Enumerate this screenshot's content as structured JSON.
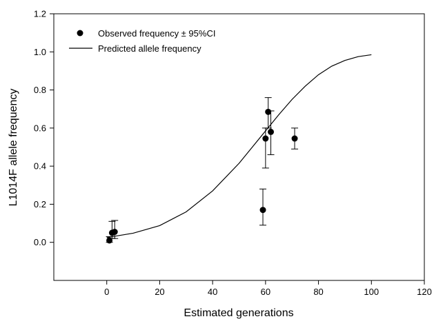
{
  "chart_data": {
    "type": "scatter",
    "title": "",
    "xlabel": "Estimated generations",
    "ylabel": "L1014F allele frequency",
    "xlim": [
      -20,
      120
    ],
    "ylim": [
      -0.2,
      1.2
    ],
    "x_ticks": [
      0,
      20,
      40,
      60,
      80,
      100,
      120
    ],
    "y_ticks": [
      0.0,
      0.2,
      0.4,
      0.6,
      0.8,
      1.0,
      1.2
    ],
    "x_tick_labels": [
      "0",
      "20",
      "40",
      "60",
      "80",
      "100",
      "120"
    ],
    "y_tick_labels": [
      "0.0",
      "0.2",
      "0.4",
      "0.6",
      "0.8",
      "1.0",
      "1.2"
    ],
    "grid": false,
    "legend_position": "top-left",
    "legend": {
      "observed": "Observed frequency ± 95%CI",
      "predicted": "Predicted allele frequency"
    },
    "series": [
      {
        "name": "Observed frequency ± 95%CI",
        "type": "scatter",
        "points": [
          {
            "x": 1,
            "y": 0.01,
            "ci_low": 0.0,
            "ci_high": 0.03
          },
          {
            "x": 2,
            "y": 0.05,
            "ci_low": 0.02,
            "ci_high": 0.11
          },
          {
            "x": 3,
            "y": 0.055,
            "ci_low": 0.02,
            "ci_high": 0.115
          },
          {
            "x": 59,
            "y": 0.17,
            "ci_low": 0.09,
            "ci_high": 0.28
          },
          {
            "x": 60,
            "y": 0.545,
            "ci_low": 0.39,
            "ci_high": 0.6
          },
          {
            "x": 61,
            "y": 0.685,
            "ci_low": 0.6,
            "ci_high": 0.76
          },
          {
            "x": 62,
            "y": 0.58,
            "ci_low": 0.46,
            "ci_high": 0.69
          },
          {
            "x": 71,
            "y": 0.545,
            "ci_low": 0.49,
            "ci_high": 0.6
          }
        ]
      },
      {
        "name": "Predicted allele frequency",
        "type": "line",
        "x": [
          0,
          10,
          20,
          30,
          40,
          50,
          55,
          60,
          65,
          70,
          75,
          80,
          85,
          90,
          95,
          100
        ],
        "y": [
          0.025,
          0.048,
          0.088,
          0.16,
          0.27,
          0.415,
          0.5,
          0.585,
          0.67,
          0.75,
          0.82,
          0.88,
          0.925,
          0.955,
          0.975,
          0.985
        ]
      }
    ]
  }
}
